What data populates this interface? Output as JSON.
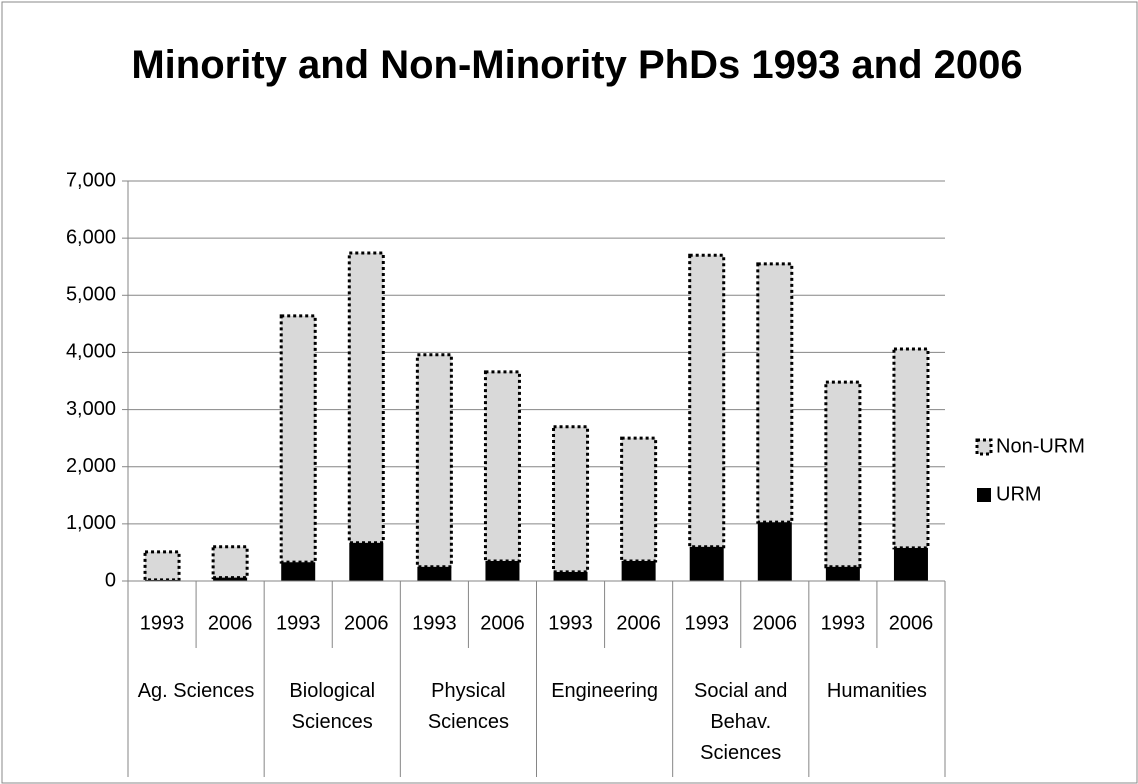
{
  "chart_data": {
    "type": "stacked_bar",
    "title": "Minority and Non-Minority PhDs 1993 and 2006",
    "categories": [
      "1993",
      "2006",
      "1993",
      "2006",
      "1993",
      "2006",
      "1993",
      "2006",
      "1993",
      "2006",
      "1993",
      "2006"
    ],
    "groups": [
      "Ag. Sciences",
      "Biological Sciences",
      "Physical Sciences",
      "Engineering",
      "Social and Behav. Sciences",
      "Humanities"
    ],
    "series": [
      {
        "name": "URM",
        "color": "#000000",
        "values": [
          20,
          60,
          330,
          670,
          250,
          350,
          160,
          350,
          600,
          1030,
          250,
          580
        ]
      },
      {
        "name": "Non-URM",
        "color": "#d9d9d9",
        "values": [
          490,
          540,
          4310,
          5070,
          3710,
          3310,
          2540,
          2150,
          5100,
          4520,
          3230,
          3480
        ]
      }
    ],
    "ylim": [
      0,
      7000
    ],
    "yticks": [
      0,
      {
        "value": 1000,
        "label": "1,000"
      },
      {
        "value": 2000,
        "label": "2,000"
      },
      {
        "value": 3000,
        "label": "3,000"
      },
      {
        "value": 4000,
        "label": "4,000"
      },
      {
        "value": 5000,
        "label": "5,000"
      },
      {
        "value": 6000,
        "label": "6,000"
      },
      {
        "value": 7000,
        "label": "7,000"
      }
    ],
    "grid": true,
    "legend": "right"
  }
}
